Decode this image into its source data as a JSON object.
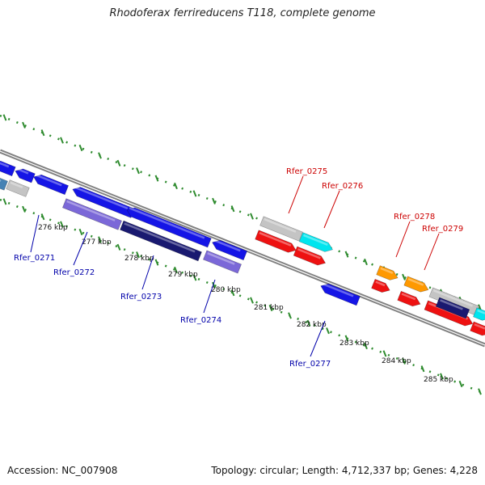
{
  "title": "Rhodoferax ferrireducens T118, complete genome",
  "footer": {
    "accession": "Accession: NC_007908",
    "summary": "Topology: circular; Length: 4,712,337 bp; Genes: 4,228"
  },
  "colors": {
    "background": "#ffffff",
    "backbone": "#808080",
    "tick_marks": "#2e8b2e",
    "forward_label": "#cc0000",
    "reverse_label": "#0000aa",
    "blue_gene": "#1515e6",
    "slate_gene": "#7b68d8",
    "navy_gene": "#191970",
    "silver_gene": "#c4c4c4",
    "cyan_gene": "#00e5ee",
    "red_gene": "#ee1111",
    "orange_gene": "#ff9900",
    "steel_gene": "#4682b4"
  },
  "scale_ticks": [
    "276 kbp",
    "277 kbp",
    "278 kbp",
    "279 kbp",
    "280 kbp",
    "281 kbp",
    "282 kbp",
    "283 kbp",
    "284 kbp",
    "285 kbp"
  ],
  "gene_labels": {
    "forward": [
      "Rfer_0275",
      "Rfer_0276",
      "Rfer_0278",
      "Rfer_0279"
    ],
    "reverse": [
      "Rfer_0271",
      "Rfer_0272",
      "Rfer_0273",
      "Rfer_0274",
      "Rfer_0277"
    ]
  }
}
